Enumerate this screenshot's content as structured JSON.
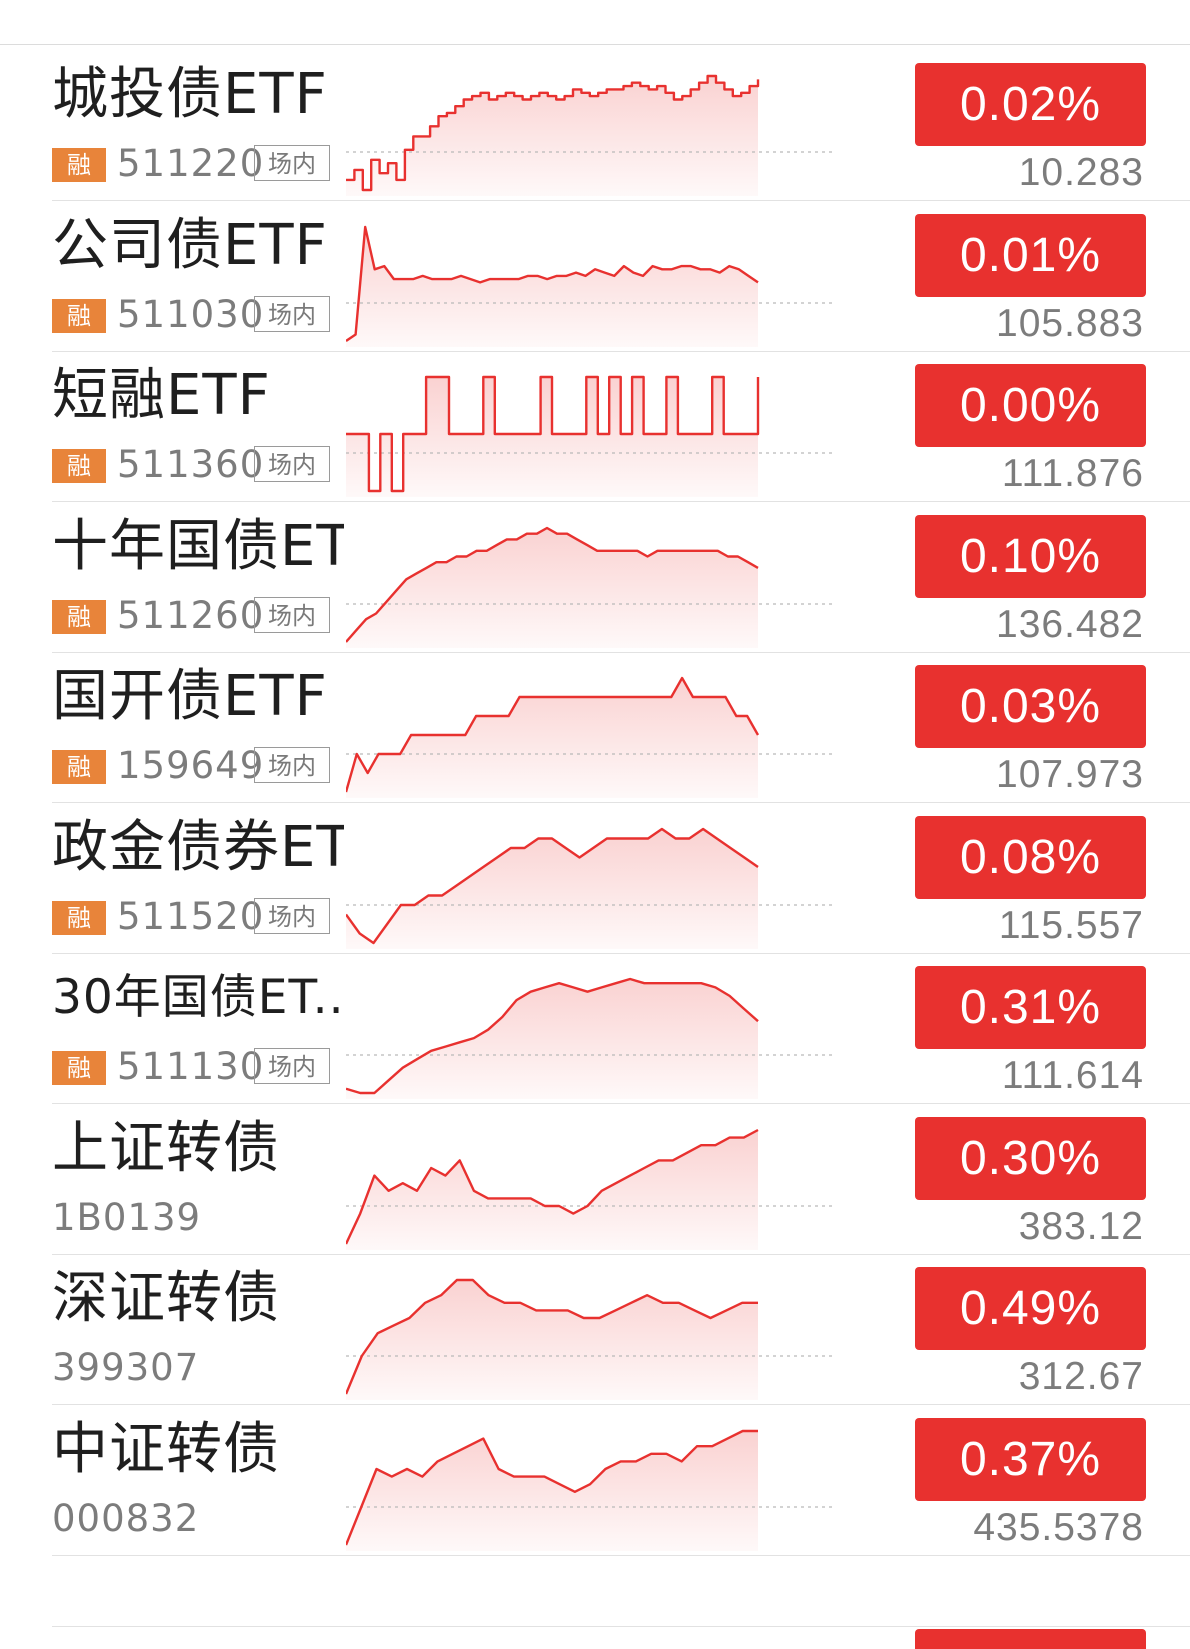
{
  "colors": {
    "up_red": "#e8312f",
    "badge_orange": "#e8843a",
    "text_gray": "#7c7c7c"
  },
  "rows": [
    {
      "name": "城投债ETF",
      "badge": "融",
      "code": "511220",
      "venue": "场内",
      "change_pct": "0.02%",
      "price": "10.283",
      "sparkline": [
        10.276,
        10.279,
        10.273,
        10.282,
        10.278,
        10.281,
        10.276,
        10.285,
        10.289,
        10.289,
        10.292,
        10.295,
        10.296,
        10.298,
        10.3,
        10.301,
        10.302,
        10.3,
        10.301,
        10.302,
        10.301,
        10.3,
        10.301,
        10.302,
        10.301,
        10.3,
        10.301,
        10.303,
        10.302,
        10.301,
        10.302,
        10.303,
        10.303,
        10.304,
        10.305,
        10.304,
        10.303,
        10.304,
        10.302,
        10.3,
        10.301,
        10.303,
        10.305,
        10.307,
        10.305,
        10.303,
        10.301,
        10.302,
        10.304,
        10.306
      ],
      "sparkline_mode": "step"
    },
    {
      "name": "公司债ETF",
      "badge": "融",
      "code": "511030",
      "venue": "场内",
      "change_pct": "0.01%",
      "price": "105.883",
      "sparkline": [
        105.87,
        105.872,
        105.905,
        105.892,
        105.893,
        105.889,
        105.889,
        105.889,
        105.89,
        105.889,
        105.889,
        105.889,
        105.89,
        105.889,
        105.888,
        105.889,
        105.889,
        105.889,
        105.889,
        105.89,
        105.89,
        105.889,
        105.89,
        105.89,
        105.891,
        105.89,
        105.892,
        105.891,
        105.89,
        105.893,
        105.891,
        105.89,
        105.893,
        105.892,
        105.892,
        105.893,
        105.893,
        105.892,
        105.892,
        105.891,
        105.893,
        105.892,
        105.89,
        105.888
      ],
      "sparkline_mode": "line"
    },
    {
      "name": "短融ETF",
      "badge": "融",
      "code": "511360",
      "venue": "场内",
      "change_pct": "0.00%",
      "price": "111.876",
      "sparkline": [
        111.876,
        111.876,
        111.875,
        111.876,
        111.875,
        111.876,
        111.876,
        111.877,
        111.877,
        111.876,
        111.876,
        111.876,
        111.877,
        111.876,
        111.876,
        111.876,
        111.876,
        111.877,
        111.876,
        111.876,
        111.876,
        111.877,
        111.876,
        111.877,
        111.876,
        111.877,
        111.876,
        111.876,
        111.877,
        111.876,
        111.876,
        111.876,
        111.877,
        111.876,
        111.876,
        111.876,
        111.877
      ],
      "sparkline_mode": "step"
    },
    {
      "name": "十年国债ETF",
      "badge": "融",
      "code": "511260",
      "venue": "场内",
      "change_pct": "0.10%",
      "price": "136.482",
      "sparkline": [
        136.35,
        136.37,
        136.39,
        136.4,
        136.42,
        136.44,
        136.46,
        136.47,
        136.48,
        136.49,
        136.49,
        136.5,
        136.5,
        136.51,
        136.51,
        136.52,
        136.53,
        136.53,
        136.54,
        136.54,
        136.55,
        136.54,
        136.54,
        136.53,
        136.52,
        136.51,
        136.51,
        136.51,
        136.51,
        136.51,
        136.5,
        136.51,
        136.51,
        136.51,
        136.51,
        136.51,
        136.51,
        136.51,
        136.5,
        136.5,
        136.49,
        136.48
      ],
      "sparkline_mode": "line"
    },
    {
      "name": "国开债ETF",
      "badge": "融",
      "code": "159649",
      "venue": "场内",
      "change_pct": "0.03%",
      "price": "107.973",
      "sparkline": [
        107.94,
        107.96,
        107.95,
        107.96,
        107.96,
        107.96,
        107.97,
        107.97,
        107.97,
        107.97,
        107.97,
        107.97,
        107.98,
        107.98,
        107.98,
        107.98,
        107.99,
        107.99,
        107.99,
        107.99,
        107.99,
        107.99,
        107.99,
        107.99,
        107.99,
        107.99,
        107.99,
        107.99,
        107.99,
        107.99,
        107.99,
        108.0,
        107.99,
        107.99,
        107.99,
        107.99,
        107.98,
        107.98,
        107.97
      ],
      "sparkline_mode": "line"
    },
    {
      "name": "政金债券ETF",
      "badge": "融",
      "code": "511520",
      "venue": "场内",
      "change_pct": "0.08%",
      "price": "115.557",
      "sparkline": [
        115.52,
        115.5,
        115.49,
        115.51,
        115.53,
        115.53,
        115.54,
        115.54,
        115.55,
        115.56,
        115.57,
        115.58,
        115.59,
        115.59,
        115.6,
        115.6,
        115.59,
        115.58,
        115.59,
        115.6,
        115.6,
        115.6,
        115.6,
        115.61,
        115.6,
        115.6,
        115.61,
        115.6,
        115.59,
        115.58,
        115.57
      ],
      "sparkline_mode": "line"
    },
    {
      "name": "30年国债ET...",
      "badge": "融",
      "code": "511130",
      "venue": "场内",
      "change_pct": "0.31%",
      "price": "111.614",
      "sparkline": [
        111.35,
        111.34,
        111.34,
        111.37,
        111.4,
        111.42,
        111.44,
        111.45,
        111.46,
        111.47,
        111.49,
        111.52,
        111.56,
        111.58,
        111.59,
        111.6,
        111.59,
        111.58,
        111.59,
        111.6,
        111.61,
        111.6,
        111.6,
        111.6,
        111.6,
        111.6,
        111.59,
        111.57,
        111.54,
        111.51
      ],
      "sparkline_mode": "line"
    },
    {
      "name": "上证转债",
      "badge": "",
      "code": "1B0139",
      "venue": "",
      "change_pct": "0.30%",
      "price": "383.12",
      "sparkline": [
        381.9,
        382.3,
        382.8,
        382.6,
        382.7,
        382.6,
        382.9,
        382.8,
        383.0,
        382.6,
        382.5,
        382.5,
        382.5,
        382.5,
        382.4,
        382.4,
        382.3,
        382.4,
        382.6,
        382.7,
        382.8,
        382.9,
        383.0,
        383.0,
        383.1,
        383.2,
        383.2,
        383.3,
        383.3,
        383.4
      ],
      "sparkline_mode": "line"
    },
    {
      "name": "深证转债",
      "badge": "",
      "code": "399307",
      "venue": "",
      "change_pct": "0.49%",
      "price": "312.67",
      "sparkline": [
        310.9,
        311.4,
        311.7,
        311.8,
        311.9,
        312.1,
        312.2,
        312.4,
        312.4,
        312.2,
        312.1,
        312.1,
        312.0,
        312.0,
        312.0,
        311.9,
        311.9,
        312.0,
        312.1,
        312.2,
        312.1,
        312.1,
        312.0,
        311.9,
        312.0,
        312.1,
        312.1
      ],
      "sparkline_mode": "line"
    },
    {
      "name": "中证转债",
      "badge": "",
      "code": "000832",
      "venue": "",
      "change_pct": "0.37%",
      "price": "435.5378",
      "sparkline": [
        433.9,
        434.4,
        434.9,
        434.8,
        434.9,
        434.8,
        435.0,
        435.1,
        435.2,
        435.3,
        434.9,
        434.8,
        434.8,
        434.8,
        434.7,
        434.6,
        434.7,
        434.9,
        435.0,
        435.0,
        435.1,
        435.1,
        435.0,
        435.2,
        435.2,
        435.3,
        435.4,
        435.4
      ],
      "sparkline_mode": "line"
    }
  ]
}
